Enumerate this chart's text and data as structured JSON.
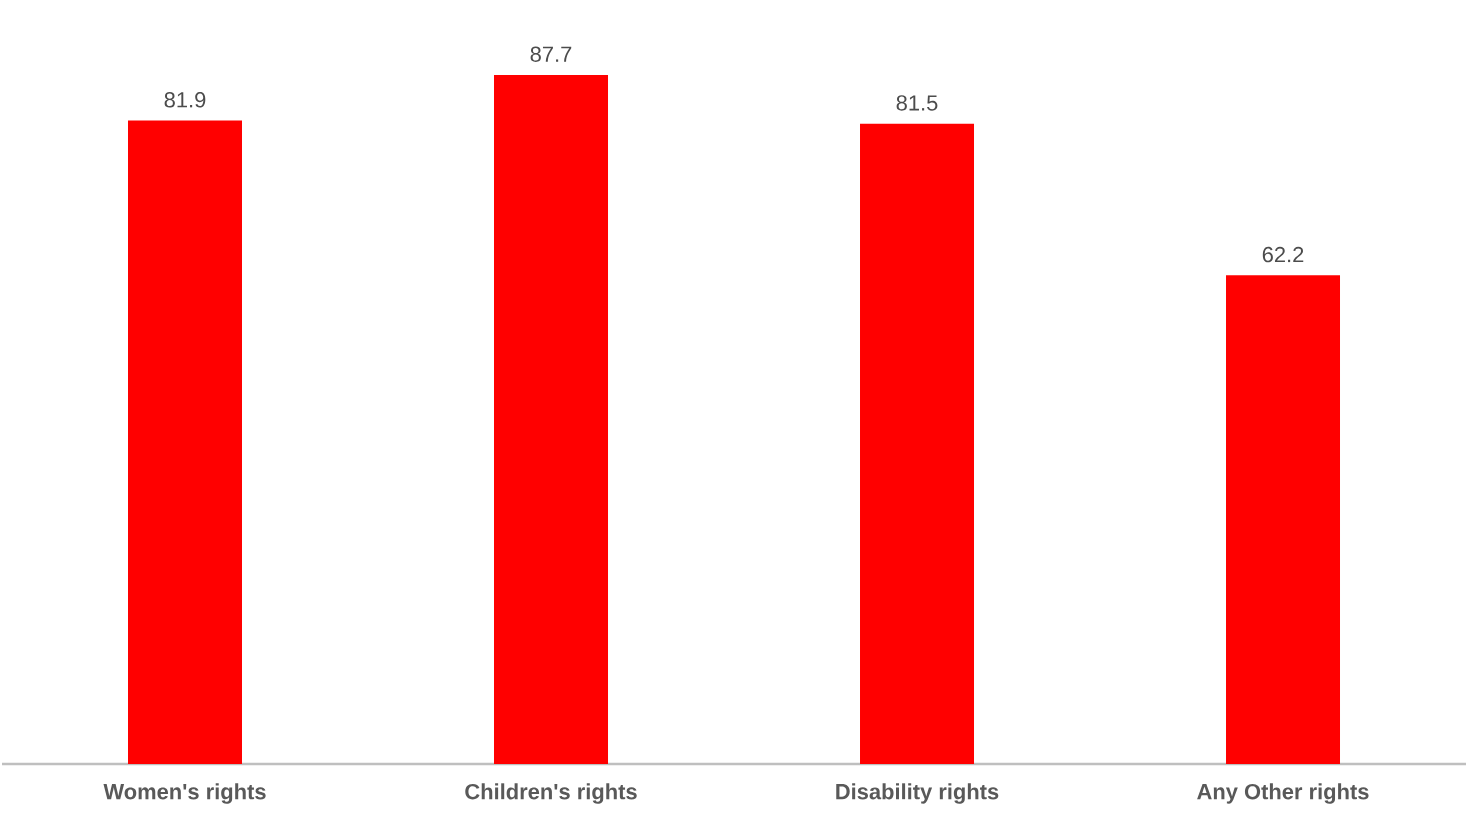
{
  "chart_data": {
    "type": "bar",
    "categories": [
      "Women's rights",
      "Children's rights",
      "Disability rights",
      "Any Other rights"
    ],
    "values": [
      81.9,
      87.7,
      81.5,
      62.2
    ],
    "color": "#ff0000",
    "data_labels": true
  }
}
